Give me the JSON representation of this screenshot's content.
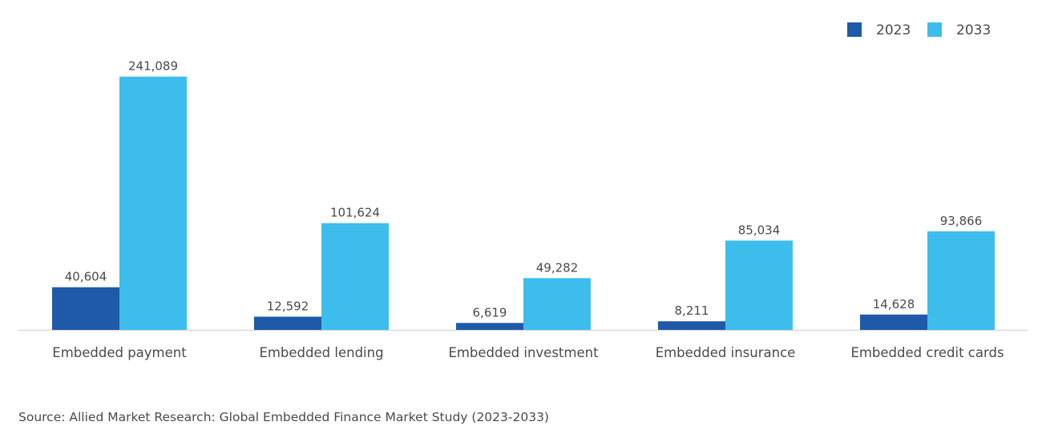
{
  "chart_data": {
    "type": "bar",
    "title": "",
    "xlabel": "",
    "ylabel": "",
    "ylim": [
      0,
      250000
    ],
    "grid": false,
    "legend_position": "top-right",
    "categories": [
      "Embedded payment",
      "Embedded lending",
      "Embedded investment",
      "Embedded insurance",
      "Embedded credit cards"
    ],
    "series": [
      {
        "name": "2023",
        "color": "#1f5aa8",
        "values": [
          40604,
          12592,
          6619,
          8211,
          14628
        ],
        "labels": [
          "40,604",
          "12,592",
          "6,619",
          "8,211",
          "14,628"
        ]
      },
      {
        "name": "2033",
        "color": "#3dbdec",
        "values": [
          241089,
          101624,
          49282,
          85034,
          93866
        ],
        "labels": [
          "241,089",
          "101,624",
          "49,282",
          "85,034",
          "93,866"
        ]
      }
    ]
  },
  "source": "Source: Allied Market Research: Global Embedded Finance Market Study (2023-2033)"
}
